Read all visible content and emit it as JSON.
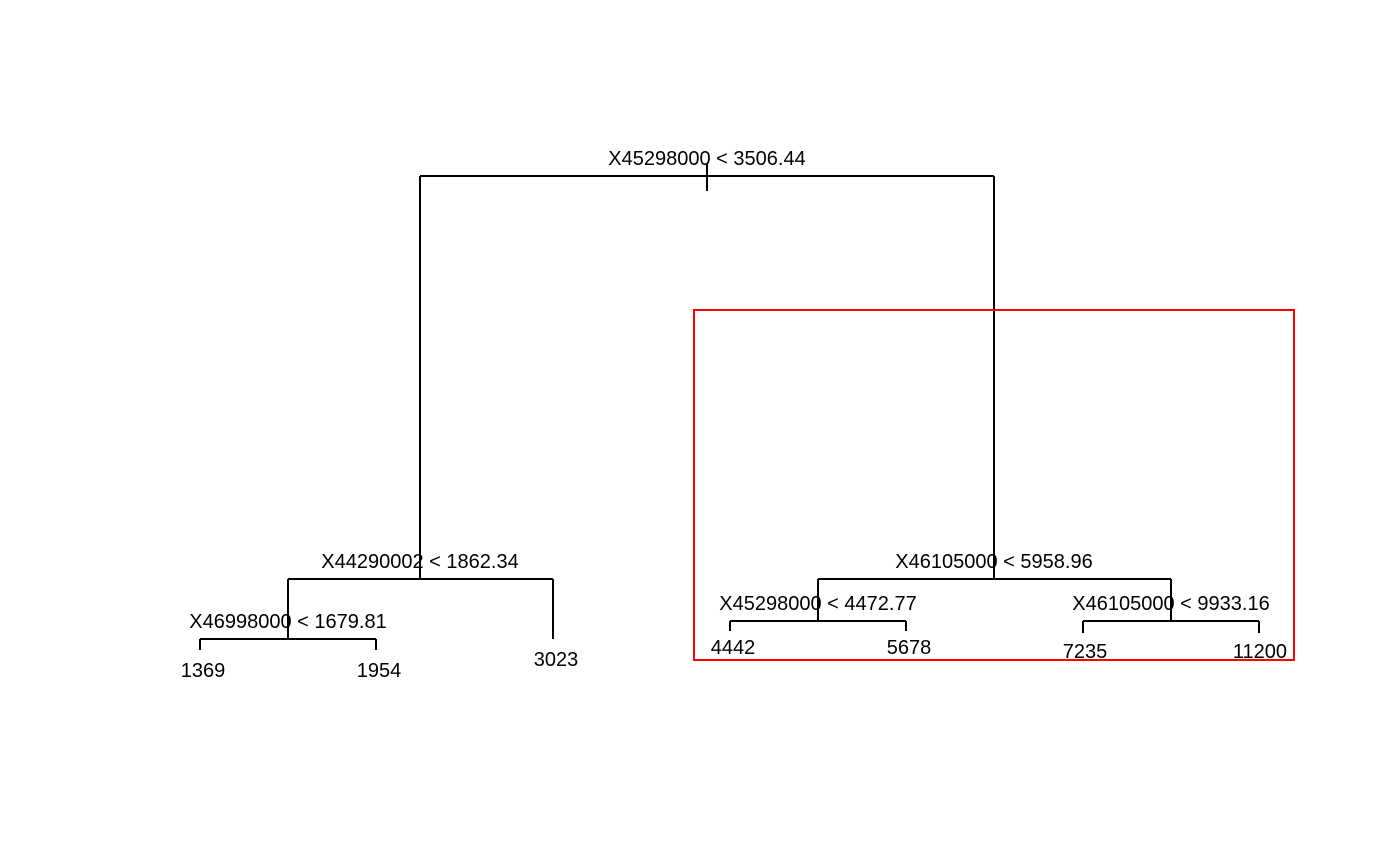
{
  "tree": {
    "root": {
      "split": "X45298000 < 3506.44",
      "left": {
        "split": "X44290002 < 1862.34",
        "left": {
          "split": "X46998000 < 1679.81",
          "left_leaf": "1369",
          "right_leaf": "1954"
        },
        "right_leaf": "3023"
      },
      "right": {
        "split": "X46105000 < 5958.96",
        "left": {
          "split": "X45298000 < 4472.77",
          "left_leaf": "4442",
          "right_leaf": "5678"
        },
        "right": {
          "split": "X46105000 < 9933.16",
          "left_leaf": "7235",
          "right_leaf": "11200"
        }
      }
    }
  },
  "colors": {
    "lines": "#000000",
    "highlight": "#ff0000",
    "background": "#ffffff"
  }
}
